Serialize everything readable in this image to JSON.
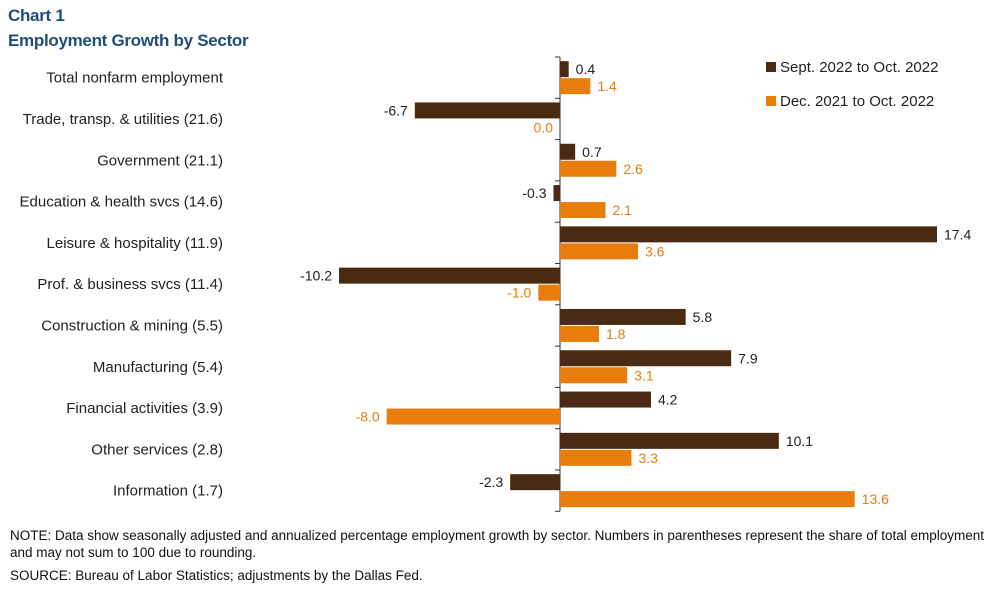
{
  "header": {
    "chart_number": "Chart 1",
    "title": "Employment Growth by Sector"
  },
  "chart_data": {
    "type": "bar",
    "orientation": "horizontal",
    "title": "Employment Growth by Sector",
    "categories": [
      "Total nonfarm employment",
      "Trade, transp. & utilities (21.6)",
      "Government (21.1)",
      "Education & health svcs (14.6)",
      "Leisure & hospitality (11.9)",
      "Prof. & business svcs (11.4)",
      "Construction & mining (5.5)",
      "Manufacturing (5.4)",
      "Financial activities (3.9)",
      "Other services (2.8)",
      "Information (1.7)"
    ],
    "series": [
      {
        "name": "Sept. 2022 to Oct. 2022",
        "color": "#4a2a12",
        "values": [
          0.4,
          -6.7,
          0.7,
          -0.3,
          17.4,
          -10.2,
          5.8,
          7.9,
          4.2,
          10.1,
          -2.3
        ],
        "labels": [
          "0.4",
          "-6.7",
          "0.7",
          "-0.3",
          "17.4",
          "-10.2",
          "5.8",
          "7.9",
          "4.2",
          "10.1",
          "-2.3"
        ]
      },
      {
        "name": "Dec. 2021 to Oct. 2022",
        "color": "#e87d0d",
        "values": [
          1.4,
          0.0,
          2.6,
          2.1,
          3.6,
          -1.0,
          1.8,
          3.1,
          -8.0,
          3.3,
          13.6
        ],
        "labels": [
          "1.4",
          "0.0",
          "2.6",
          "2.1",
          "3.6",
          "-1.0",
          "1.8",
          "3.1",
          "-8.0",
          "3.3",
          "13.6"
        ]
      }
    ],
    "xlim": [
      -10.2,
      17.4
    ],
    "xlabel": "",
    "ylabel": "",
    "legend_position": "top-right",
    "grid": false
  },
  "notes": {
    "note": "NOTE: Data show seasonally adjusted and annualized percentage employment growth by sector. Numbers in parentheses represent the share of total employment and may not sum to 100 due to rounding.",
    "source": "SOURCE: Bureau of Labor Statistics; adjustments by the Dallas Fed."
  }
}
